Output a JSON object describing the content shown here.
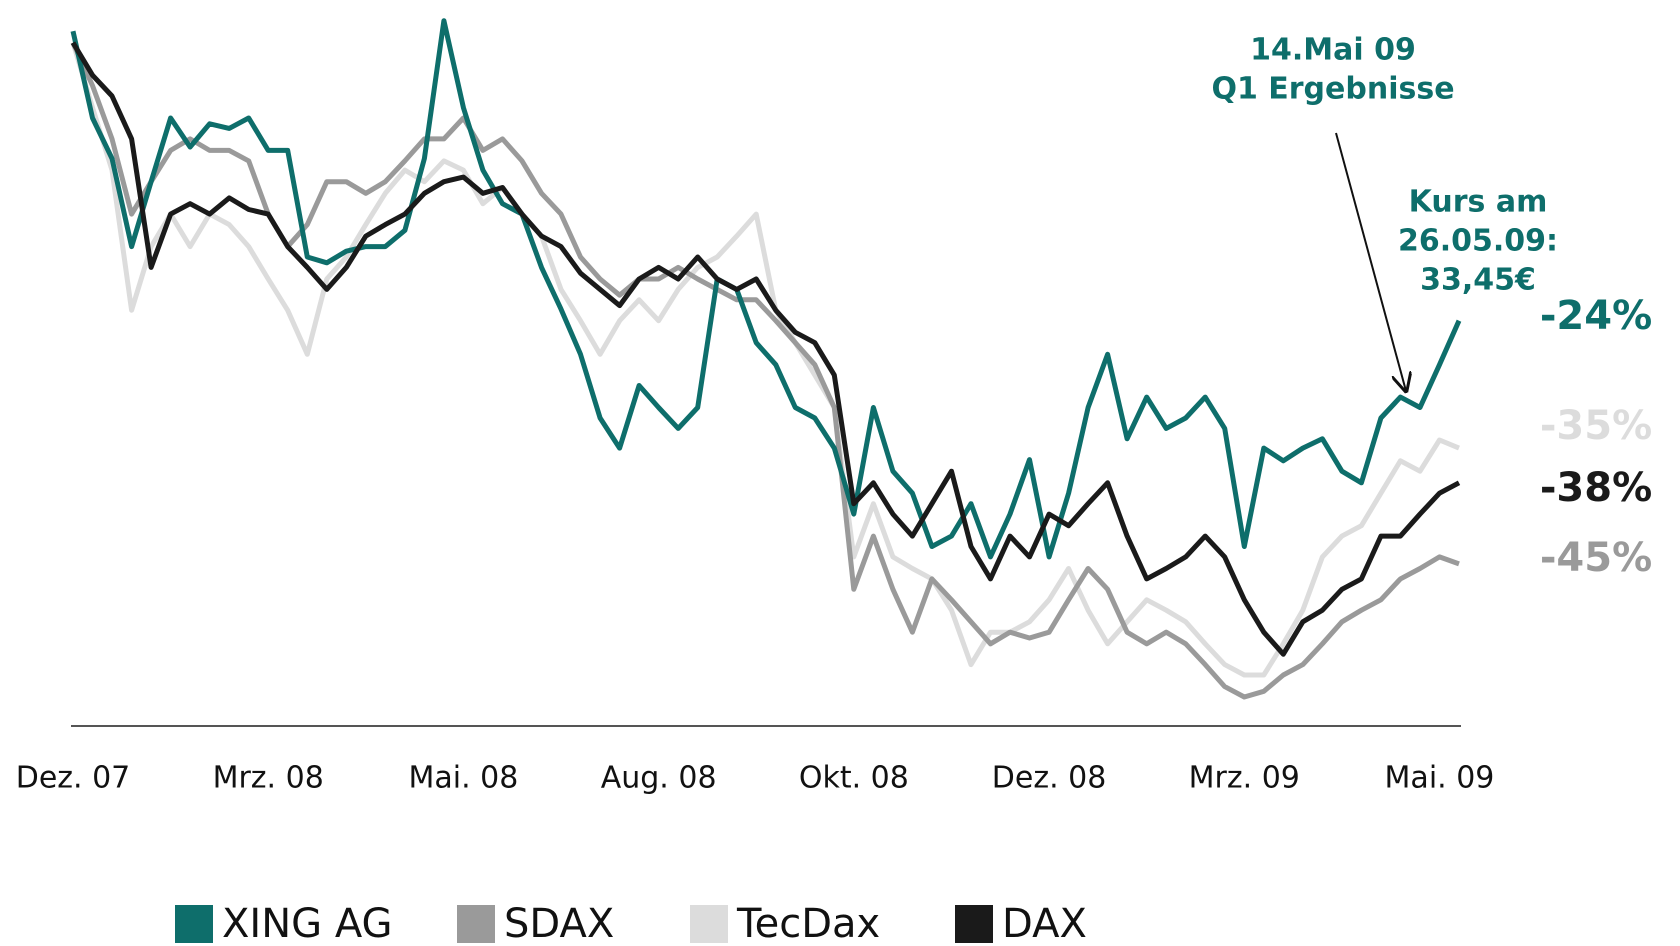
{
  "chart_data": {
    "type": "line",
    "categories": [
      "Dez. 07",
      null,
      null,
      null,
      null,
      null,
      null,
      null,
      null,
      null,
      "Mrz. 08",
      null,
      null,
      null,
      null,
      null,
      null,
      null,
      null,
      null,
      "Mai. 08",
      null,
      null,
      null,
      null,
      null,
      null,
      null,
      null,
      null,
      "Aug. 08",
      null,
      null,
      null,
      null,
      null,
      null,
      null,
      null,
      null,
      "Okt. 08",
      null,
      null,
      null,
      null,
      null,
      null,
      null,
      null,
      null,
      "Dez. 08",
      null,
      null,
      null,
      null,
      null,
      null,
      null,
      null,
      null,
      "Mrz. 09",
      null,
      null,
      null,
      null,
      null,
      null,
      null,
      null,
      null,
      "Mai. 09",
      null
    ],
    "ylim": [
      -59,
      3
    ],
    "series": [
      {
        "name": "XING AG",
        "color": "#0e6e6b",
        "label": "-24%",
        "values": [
          1,
          -6.5,
          -10,
          -17.6,
          -12,
          -6.5,
          -9,
          -7,
          -7.4,
          -6.5,
          -9.3,
          -9.3,
          -18.5,
          -19,
          -18,
          -17.6,
          -17.6,
          -16.2,
          -10,
          1.9,
          -5.6,
          -11,
          -13.9,
          -14.8,
          -19.4,
          -23,
          -26.9,
          -32.4,
          -35,
          -29.6,
          -31.5,
          -33.3,
          -31.5,
          -20.4,
          -21.3,
          -25.9,
          -27.8,
          -31.5,
          -32.4,
          -35,
          -40.7,
          -31.5,
          -37,
          -38.9,
          -43.5,
          -42.6,
          -39.8,
          -44.4,
          -40.7,
          -36,
          -44.4,
          -38.9,
          -31.5,
          -26.9,
          -34.2,
          -30.6,
          -33.3,
          -32.4,
          -30.6,
          -33.3,
          -43.5,
          -35,
          -36.1,
          -35,
          -34.2,
          -37,
          -38,
          -32.4,
          -30.6,
          -31.5,
          -27.8,
          -24
        ]
      },
      {
        "name": "SDAX",
        "color": "#9a9a9a",
        "label": "-45%",
        "values": [
          0,
          -3.7,
          -8.3,
          -14.8,
          -12,
          -9.3,
          -8.3,
          -9.3,
          -9.3,
          -10.2,
          -14.8,
          -17.6,
          -15.7,
          -12,
          -12,
          -13,
          -12,
          -10.2,
          -8.3,
          -8.3,
          -6.5,
          -9.3,
          -8.3,
          -10.2,
          -13,
          -14.8,
          -18.5,
          -20.4,
          -21.8,
          -20.4,
          -20.4,
          -19.4,
          -20.4,
          -21.3,
          -22.2,
          -22.2,
          -24,
          -25.9,
          -27.8,
          -31.5,
          -47.2,
          -42.6,
          -47.2,
          -50.9,
          -46.3,
          -48.1,
          -50,
          -51.9,
          -50.9,
          -51.4,
          -50.9,
          -48.1,
          -45.4,
          -47.2,
          -50.9,
          -51.9,
          -50.9,
          -51.9,
          -53.7,
          -55.6,
          -56.5,
          -56,
          -54.6,
          -53.7,
          -51.9,
          -50,
          -49,
          -48.1,
          -46.3,
          -45.4,
          -44.4,
          -45
        ]
      },
      {
        "name": "TecDax",
        "color": "#dcdcdc",
        "label": "-35%",
        "values": [
          0,
          -5.6,
          -11,
          -23.1,
          -17.6,
          -14.8,
          -17.6,
          -14.8,
          -15.7,
          -17.6,
          -20.4,
          -23.1,
          -26.9,
          -20.4,
          -18.5,
          -15.7,
          -13,
          -11,
          -12,
          -10.2,
          -11,
          -13.9,
          -12.5,
          -14.8,
          -16.7,
          -21.3,
          -24,
          -26.9,
          -24,
          -22.2,
          -24,
          -21.3,
          -19.4,
          -18.5,
          -16.7,
          -14.8,
          -23.1,
          -25.9,
          -28.7,
          -31.5,
          -44.4,
          -39.8,
          -44.4,
          -45.4,
          -46.3,
          -49,
          -53.7,
          -50.9,
          -50.9,
          -50,
          -48.1,
          -45.4,
          -49,
          -51.9,
          -50,
          -48.1,
          -49,
          -50,
          -51.9,
          -53.7,
          -54.6,
          -54.6,
          -51.9,
          -49,
          -44.4,
          -42.6,
          -41.7,
          -38.9,
          -36.1,
          -37,
          -34.3,
          -35
        ]
      },
      {
        "name": "DAX",
        "color": "#1a1a1a",
        "label": "-38%",
        "values": [
          0,
          -2.8,
          -4.6,
          -8.3,
          -19.4,
          -14.8,
          -13.9,
          -14.8,
          -13.4,
          -14.4,
          -14.8,
          -17.6,
          -19.4,
          -21.3,
          -19.4,
          -16.7,
          -15.7,
          -14.8,
          -13,
          -12,
          -11.6,
          -13,
          -12.5,
          -14.8,
          -16.7,
          -17.6,
          -19.9,
          -21.3,
          -22.7,
          -20.4,
          -19.4,
          -20.4,
          -18.5,
          -20.4,
          -21.3,
          -20.4,
          -23.1,
          -25,
          -25.9,
          -28.7,
          -39.8,
          -38,
          -40.7,
          -42.6,
          -39.8,
          -37,
          -43.5,
          -46.3,
          -42.6,
          -44.4,
          -40.7,
          -41.7,
          -39.8,
          -38,
          -42.6,
          -46.3,
          -45.4,
          -44.4,
          -42.6,
          -44.4,
          -48.1,
          -50.9,
          -52.8,
          -50,
          -49,
          -47.2,
          -46.3,
          -42.6,
          -42.6,
          -40.7,
          -38.9,
          -38
        ]
      }
    ],
    "annotations": [
      {
        "lines": [
          "14.Mai 09",
          "Q1 Ergebnisse"
        ],
        "color": "#0e6e6b"
      },
      {
        "lines": [
          "Kurs am",
          "26.05.09:",
          "33,45€"
        ],
        "color": "#0e6e6b"
      }
    ]
  }
}
